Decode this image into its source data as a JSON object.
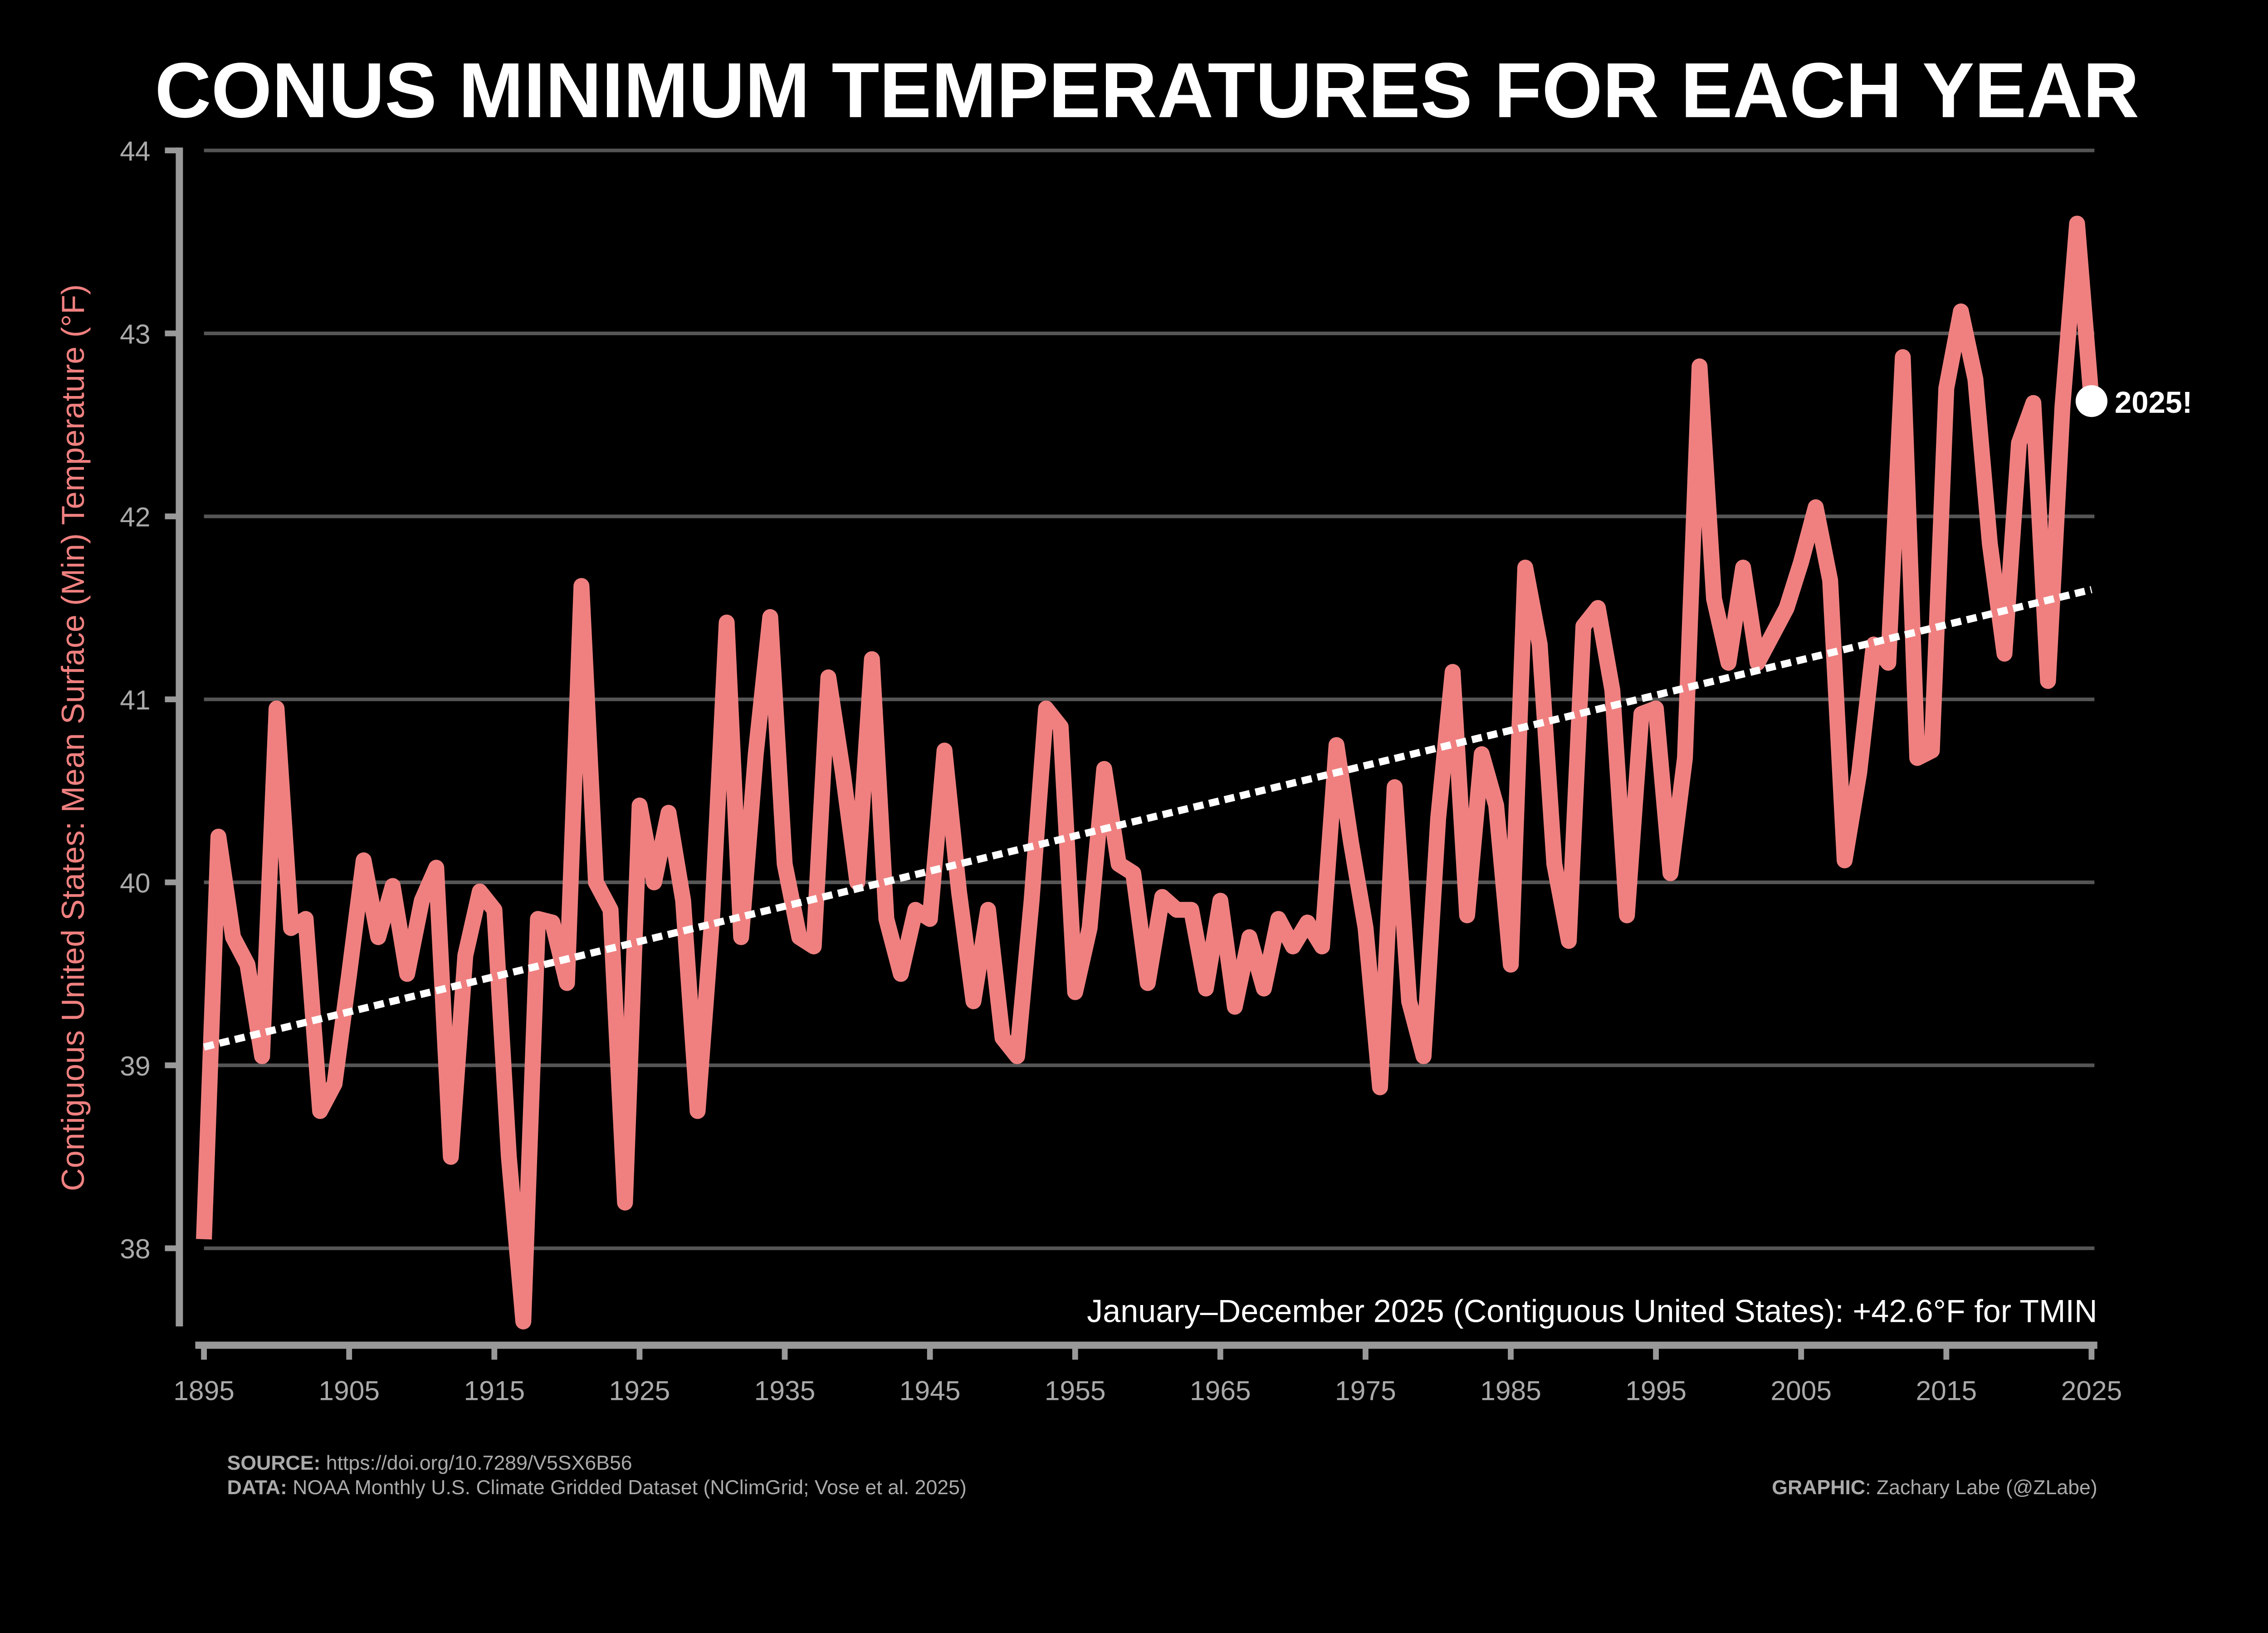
{
  "chart_data": {
    "type": "line",
    "title": "CONUS MINIMUM TEMPERATURES FOR EACH YEAR",
    "ylabel": "Contiguous United States: Mean Surface (Min) Temperature (°F)",
    "xlabel": "",
    "xlim": [
      1895,
      2025
    ],
    "ylim": [
      37.6,
      44
    ],
    "yticks": [
      "38",
      "39",
      "40",
      "41",
      "42",
      "43",
      "44"
    ],
    "xticks": [
      "1895",
      "1905",
      "1915",
      "1925",
      "1935",
      "1945",
      "1955",
      "1965",
      "1975",
      "1985",
      "1995",
      "2005",
      "2015",
      "2025"
    ],
    "grid": true,
    "colors": {
      "line": "#F08080",
      "trend": "#FFFFFF",
      "grid": "#555555",
      "axis": "#999999",
      "background": "#000000"
    },
    "x_start": 1895,
    "values": [
      38.05,
      40.25,
      39.7,
      39.55,
      39.05,
      40.95,
      39.75,
      39.8,
      38.75,
      38.9,
      39.5,
      40.12,
      39.7,
      39.98,
      39.5,
      39.9,
      40.08,
      38.5,
      39.6,
      39.95,
      39.85,
      38.5,
      37.6,
      39.8,
      39.78,
      39.45,
      41.62,
      40.0,
      39.85,
      38.25,
      40.42,
      40.0,
      40.38,
      39.9,
      38.75,
      39.8,
      41.42,
      39.7,
      40.7,
      41.45,
      40.1,
      39.7,
      39.65,
      41.12,
      40.6,
      40.0,
      41.22,
      39.8,
      39.5,
      39.85,
      39.8,
      40.72,
      39.95,
      39.35,
      39.85,
      39.15,
      39.05,
      39.9,
      40.95,
      40.85,
      39.4,
      39.75,
      40.62,
      40.1,
      40.05,
      39.45,
      39.92,
      39.85,
      39.85,
      39.42,
      39.9,
      39.32,
      39.7,
      39.42,
      39.8,
      39.65,
      39.78,
      39.65,
      40.75,
      40.22,
      39.75,
      38.88,
      40.52,
      39.35,
      39.05,
      40.35,
      41.15,
      39.82,
      40.7,
      40.42,
      39.55,
      41.72,
      41.3,
      40.1,
      39.68,
      41.4,
      41.5,
      41.05,
      39.82,
      40.92,
      40.95,
      40.05,
      40.68,
      42.82,
      41.55,
      41.2,
      41.72,
      41.2,
      41.35,
      41.5,
      41.75,
      42.05,
      41.65,
      40.12,
      40.6,
      41.3,
      41.2,
      42.87,
      40.68,
      40.72,
      42.7,
      43.12,
      42.75,
      41.85,
      41.25,
      42.4,
      42.62,
      41.1,
      42.6,
      43.6,
      42.63
    ],
    "trend": {
      "start": [
        1895,
        39.1
      ],
      "end": [
        2025,
        41.6
      ]
    },
    "highlight": {
      "year": 2025,
      "value": 42.63,
      "label": "2025!"
    },
    "annotation": "January–December 2025 (Contiguous United States): +42.6°F for TMIN"
  },
  "footer": {
    "source_label": "SOURCE:",
    "source_text": " https://doi.org/10.7289/V5SX6B56",
    "data_label": "DATA:",
    "data_text": " NOAA Monthly U.S. Climate Gridded Dataset (NClimGrid; Vose et al. 2025)",
    "graphic_label": "GRAPHIC",
    "graphic_text": ": Zachary Labe (@ZLabe)"
  }
}
